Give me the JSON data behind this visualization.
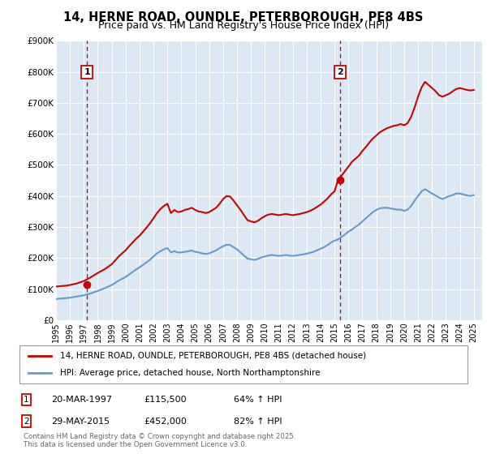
{
  "title": "14, HERNE ROAD, OUNDLE, PETERBOROUGH, PE8 4BS",
  "subtitle": "Price paid vs. HM Land Registry's House Price Index (HPI)",
  "title_fontsize": 10.5,
  "subtitle_fontsize": 9,
  "background_color": "#ffffff",
  "plot_bg_color": "#dce9f5",
  "grid_color": "#ffffff",
  "ylim": [
    0,
    900000
  ],
  "xlim_start": 1995.0,
  "xlim_end": 2025.6,
  "ytick_labels": [
    "£0",
    "£100K",
    "£200K",
    "£300K",
    "£400K",
    "£500K",
    "£600K",
    "£700K",
    "£800K",
    "£900K"
  ],
  "ytick_values": [
    0,
    100000,
    200000,
    300000,
    400000,
    500000,
    600000,
    700000,
    800000,
    900000
  ],
  "xtick_values": [
    1995,
    1996,
    1997,
    1998,
    1999,
    2000,
    2001,
    2002,
    2003,
    2004,
    2005,
    2006,
    2007,
    2008,
    2009,
    2010,
    2011,
    2012,
    2013,
    2014,
    2015,
    2016,
    2017,
    2018,
    2019,
    2020,
    2021,
    2022,
    2023,
    2024,
    2025
  ],
  "red_line_color": "#cc0000",
  "blue_line_color": "#6699cc",
  "vline_color": "#cc0000",
  "legend_label_red": "14, HERNE ROAD, OUNDLE, PETERBOROUGH, PE8 4BS (detached house)",
  "legend_label_blue": "HPI: Average price, detached house, North Northamptonshire",
  "sale1_x": 1997.22,
  "sale1_y": 115500,
  "sale2_x": 2015.41,
  "sale2_y": 452000,
  "annotation1_date": "20-MAR-1997",
  "annotation1_price": "£115,500",
  "annotation1_hpi": "64% ↑ HPI",
  "annotation2_date": "29-MAY-2015",
  "annotation2_price": "£452,000",
  "annotation2_hpi": "82% ↑ HPI",
  "footer": "Contains HM Land Registry data © Crown copyright and database right 2025.\nThis data is licensed under the Open Government Licence v3.0.",
  "red_hpi_x": [
    1995.0,
    1995.25,
    1995.5,
    1995.75,
    1996.0,
    1996.25,
    1996.5,
    1996.75,
    1997.0,
    1997.25,
    1997.5,
    1997.75,
    1998.0,
    1998.25,
    1998.5,
    1998.75,
    1999.0,
    1999.25,
    1999.5,
    1999.75,
    2000.0,
    2000.25,
    2000.5,
    2000.75,
    2001.0,
    2001.25,
    2001.5,
    2001.75,
    2002.0,
    2002.25,
    2002.5,
    2002.75,
    2003.0,
    2003.25,
    2003.5,
    2003.75,
    2004.0,
    2004.25,
    2004.5,
    2004.75,
    2005.0,
    2005.25,
    2005.5,
    2005.75,
    2006.0,
    2006.25,
    2006.5,
    2006.75,
    2007.0,
    2007.25,
    2007.5,
    2007.75,
    2008.0,
    2008.25,
    2008.5,
    2008.75,
    2009.0,
    2009.25,
    2009.5,
    2009.75,
    2010.0,
    2010.25,
    2010.5,
    2010.75,
    2011.0,
    2011.25,
    2011.5,
    2011.75,
    2012.0,
    2012.25,
    2012.5,
    2012.75,
    2013.0,
    2013.25,
    2013.5,
    2013.75,
    2014.0,
    2014.25,
    2014.5,
    2014.75,
    2015.0,
    2015.25,
    2015.5,
    2015.75,
    2016.0,
    2016.25,
    2016.5,
    2016.75,
    2017.0,
    2017.25,
    2017.5,
    2017.75,
    2018.0,
    2018.25,
    2018.5,
    2018.75,
    2019.0,
    2019.25,
    2019.5,
    2019.75,
    2020.0,
    2020.25,
    2020.5,
    2020.75,
    2021.0,
    2021.25,
    2021.5,
    2021.75,
    2022.0,
    2022.25,
    2022.5,
    2022.75,
    2023.0,
    2023.25,
    2023.5,
    2023.75,
    2024.0,
    2024.25,
    2024.5,
    2024.75,
    2025.0
  ],
  "red_hpi_y": [
    108000,
    109000,
    110000,
    111000,
    113000,
    115500,
    118000,
    122000,
    126000,
    132000,
    138000,
    145000,
    152000,
    158000,
    164000,
    172000,
    180000,
    192000,
    205000,
    215000,
    225000,
    238000,
    250000,
    262000,
    272000,
    285000,
    298000,
    312000,
    328000,
    345000,
    358000,
    368000,
    375000,
    345000,
    355000,
    348000,
    350000,
    355000,
    358000,
    362000,
    355000,
    350000,
    348000,
    345000,
    348000,
    355000,
    362000,
    375000,
    390000,
    400000,
    398000,
    385000,
    370000,
    355000,
    338000,
    322000,
    318000,
    315000,
    320000,
    328000,
    335000,
    340000,
    342000,
    340000,
    338000,
    340000,
    342000,
    340000,
    338000,
    340000,
    342000,
    345000,
    348000,
    352000,
    358000,
    365000,
    372000,
    382000,
    392000,
    405000,
    415000,
    452000,
    465000,
    480000,
    495000,
    510000,
    520000,
    530000,
    545000,
    558000,
    572000,
    585000,
    595000,
    605000,
    612000,
    618000,
    622000,
    626000,
    628000,
    632000,
    628000,
    635000,
    655000,
    685000,
    720000,
    750000,
    768000,
    758000,
    748000,
    738000,
    725000,
    720000,
    725000,
    730000,
    738000,
    745000,
    748000,
    745000,
    742000,
    740000,
    742000
  ],
  "blue_hpi_x": [
    1995.0,
    1995.25,
    1995.5,
    1995.75,
    1996.0,
    1996.25,
    1996.5,
    1996.75,
    1997.0,
    1997.25,
    1997.5,
    1997.75,
    1998.0,
    1998.25,
    1998.5,
    1998.75,
    1999.0,
    1999.25,
    1999.5,
    1999.75,
    2000.0,
    2000.25,
    2000.5,
    2000.75,
    2001.0,
    2001.25,
    2001.5,
    2001.75,
    2002.0,
    2002.25,
    2002.5,
    2002.75,
    2003.0,
    2003.25,
    2003.5,
    2003.75,
    2004.0,
    2004.25,
    2004.5,
    2004.75,
    2005.0,
    2005.25,
    2005.5,
    2005.75,
    2006.0,
    2006.25,
    2006.5,
    2006.75,
    2007.0,
    2007.25,
    2007.5,
    2007.75,
    2008.0,
    2008.25,
    2008.5,
    2008.75,
    2009.0,
    2009.25,
    2009.5,
    2009.75,
    2010.0,
    2010.25,
    2010.5,
    2010.75,
    2011.0,
    2011.25,
    2011.5,
    2011.75,
    2012.0,
    2012.25,
    2012.5,
    2012.75,
    2013.0,
    2013.25,
    2013.5,
    2013.75,
    2014.0,
    2014.25,
    2014.5,
    2014.75,
    2015.0,
    2015.25,
    2015.5,
    2015.75,
    2016.0,
    2016.25,
    2016.5,
    2016.75,
    2017.0,
    2017.25,
    2017.5,
    2017.75,
    2018.0,
    2018.25,
    2018.5,
    2018.75,
    2019.0,
    2019.25,
    2019.5,
    2019.75,
    2020.0,
    2020.25,
    2020.5,
    2020.75,
    2021.0,
    2021.25,
    2021.5,
    2021.75,
    2022.0,
    2022.25,
    2022.5,
    2022.75,
    2023.0,
    2023.25,
    2023.5,
    2023.75,
    2024.0,
    2024.25,
    2024.5,
    2024.75,
    2025.0
  ],
  "blue_hpi_y": [
    68000,
    69000,
    70000,
    71000,
    72000,
    74000,
    76000,
    78000,
    80000,
    83000,
    86000,
    90000,
    94000,
    98000,
    103000,
    108000,
    113000,
    120000,
    127000,
    133000,
    139000,
    147000,
    155000,
    163000,
    170000,
    178000,
    186000,
    195000,
    205000,
    215000,
    222000,
    228000,
    232000,
    218000,
    222000,
    218000,
    218000,
    220000,
    222000,
    224000,
    220000,
    218000,
    215000,
    213000,
    215000,
    220000,
    225000,
    232000,
    238000,
    243000,
    242000,
    235000,
    228000,
    218000,
    208000,
    198000,
    196000,
    194000,
    197000,
    202000,
    205000,
    208000,
    210000,
    208000,
    207000,
    208000,
    210000,
    208000,
    207000,
    208000,
    210000,
    212000,
    214000,
    217000,
    220000,
    225000,
    230000,
    235000,
    242000,
    250000,
    256000,
    260000,
    268000,
    276000,
    285000,
    292000,
    300000,
    308000,
    318000,
    328000,
    338000,
    348000,
    355000,
    360000,
    362000,
    362000,
    360000,
    358000,
    356000,
    356000,
    352000,
    356000,
    368000,
    385000,
    400000,
    415000,
    422000,
    415000,
    408000,
    402000,
    395000,
    390000,
    395000,
    400000,
    403000,
    408000,
    408000,
    405000,
    402000,
    400000,
    403000
  ]
}
